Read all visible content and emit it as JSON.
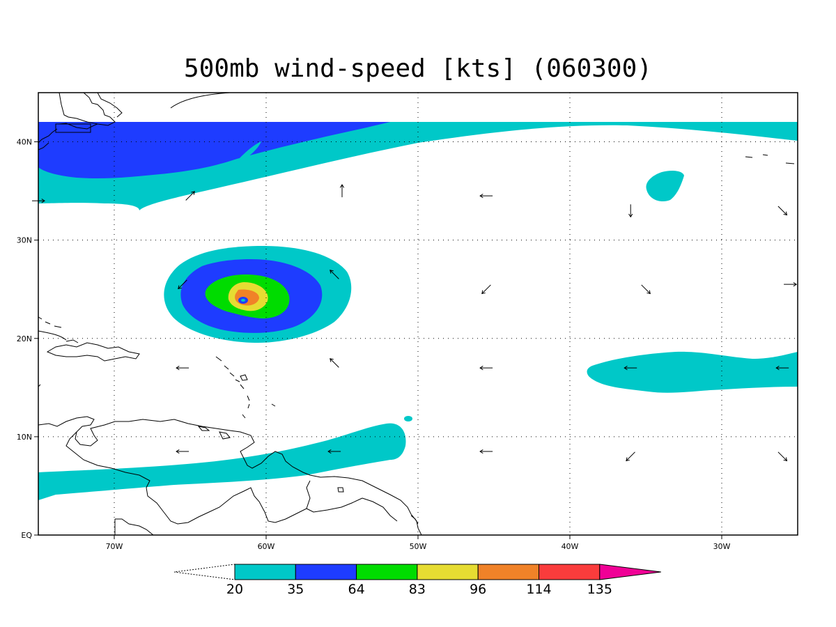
{
  "title": "500mb wind-speed [kts] (060300)",
  "axes": {
    "lon_ticks": [
      {
        "lon": -70,
        "label": "70W"
      },
      {
        "lon": -60,
        "label": "60W"
      },
      {
        "lon": -50,
        "label": "50W"
      },
      {
        "lon": -40,
        "label": "40W"
      },
      {
        "lon": -30,
        "label": "30W"
      }
    ],
    "lat_ticks": [
      {
        "lat": 0,
        "label": "EQ"
      },
      {
        "lat": 10,
        "label": "10N"
      },
      {
        "lat": 20,
        "label": "20N"
      },
      {
        "lat": 30,
        "label": "30N"
      },
      {
        "lat": 40,
        "label": "40N"
      }
    ],
    "lon_range": [
      -75,
      -25
    ],
    "lat_range": [
      0,
      45
    ],
    "grid": true
  },
  "colorbar": {
    "levels": [
      "20",
      "35",
      "64",
      "83",
      "96",
      "114",
      "135"
    ],
    "colors": [
      "#00c8c8",
      "#1e3cff",
      "#00dc00",
      "#e6dc32",
      "#f08228",
      "#fa3c3c",
      "#f00096"
    ]
  },
  "wind_vectors": [
    {
      "lon": -75,
      "lat": 34,
      "dir": "E"
    },
    {
      "lon": -65,
      "lat": 34.5,
      "dir": "NE"
    },
    {
      "lon": -55,
      "lat": 35,
      "dir": "N"
    },
    {
      "lon": -45.5,
      "lat": 34.5,
      "dir": "W"
    },
    {
      "lon": -36,
      "lat": 33,
      "dir": "S"
    },
    {
      "lon": -26,
      "lat": 33,
      "dir": "SE"
    },
    {
      "lon": -65.5,
      "lat": 25.5,
      "dir": "SW"
    },
    {
      "lon": -55.5,
      "lat": 26.5,
      "dir": "NW"
    },
    {
      "lon": -45.5,
      "lat": 25,
      "dir": "SW"
    },
    {
      "lon": -35,
      "lat": 25,
      "dir": "SE"
    },
    {
      "lon": -25.5,
      "lat": 25.5,
      "dir": "E"
    },
    {
      "lon": -65.5,
      "lat": 17,
      "dir": "W"
    },
    {
      "lon": -55.5,
      "lat": 17.5,
      "dir": "NW"
    },
    {
      "lon": -45.5,
      "lat": 17,
      "dir": "W"
    },
    {
      "lon": -36,
      "lat": 17,
      "dir": "W"
    },
    {
      "lon": -26,
      "lat": 17,
      "dir": "W"
    },
    {
      "lon": -65.5,
      "lat": 8.5,
      "dir": "W"
    },
    {
      "lon": -55.5,
      "lat": 8.5,
      "dir": "W"
    },
    {
      "lon": -45.5,
      "lat": 8.5,
      "dir": "W"
    },
    {
      "lon": -36,
      "lat": 8,
      "dir": "SW"
    },
    {
      "lon": -26,
      "lat": 8,
      "dir": "SE"
    }
  ]
}
